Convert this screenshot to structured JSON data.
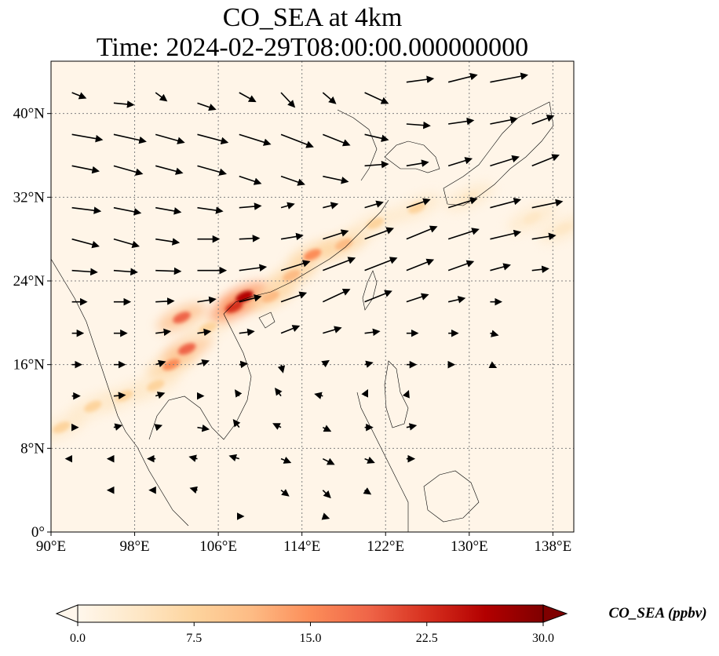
{
  "chart_data": {
    "type": "heatmap",
    "title_line1": "CO_SEA at 4km",
    "title_line2": "Time: 2024-02-29T08:00:00.000000000",
    "x_axis": {
      "range": [
        90,
        140
      ],
      "ticks": [
        90,
        98,
        106,
        114,
        122,
        130,
        138
      ],
      "tick_labels": [
        "90°E",
        "98°E",
        "106°E",
        "114°E",
        "122°E",
        "130°E",
        "138°E"
      ]
    },
    "y_axis": {
      "range": [
        0,
        45
      ],
      "ticks": [
        0,
        8,
        16,
        24,
        32,
        40
      ],
      "tick_labels": [
        "0°",
        "8°N",
        "16°N",
        "24°N",
        "32°N",
        "40°N"
      ]
    },
    "gridlines": "dotted",
    "colorbar": {
      "label": "CO_SEA (ppbv)",
      "colormap": "OrRd",
      "range": [
        0.0,
        30.0
      ],
      "ticks": [
        0.0,
        7.5,
        15.0,
        22.5,
        30.0
      ],
      "tick_labels": [
        "0.0",
        "7.5",
        "15.0",
        "22.5",
        "30.0"
      ],
      "extend": "both",
      "placement": "bottom",
      "colors": [
        "#fff7ec",
        "#fee8c8",
        "#fdd49e",
        "#fdbb84",
        "#fc8d59",
        "#ef6548",
        "#d7301f",
        "#b30000",
        "#7f0000"
      ]
    },
    "plume_points": [
      {
        "lon": 91,
        "lat": 10,
        "value": 6
      },
      {
        "lon": 94,
        "lat": 12,
        "value": 7
      },
      {
        "lon": 97,
        "lat": 13,
        "value": 7
      },
      {
        "lon": 100,
        "lat": 14,
        "value": 8
      },
      {
        "lon": 101.5,
        "lat": 16,
        "value": 14
      },
      {
        "lon": 103,
        "lat": 17.5,
        "value": 17
      },
      {
        "lon": 102.5,
        "lat": 20.5,
        "value": 20
      },
      {
        "lon": 105,
        "lat": 19.5,
        "value": 9
      },
      {
        "lon": 107.5,
        "lat": 21.5,
        "value": 24
      },
      {
        "lon": 108.5,
        "lat": 22.5,
        "value": 27
      },
      {
        "lon": 111,
        "lat": 22.5,
        "value": 12
      },
      {
        "lon": 113,
        "lat": 24.5,
        "value": 11
      },
      {
        "lon": 115,
        "lat": 26.5,
        "value": 14
      },
      {
        "lon": 118,
        "lat": 27.5,
        "value": 12
      },
      {
        "lon": 121,
        "lat": 29.5,
        "value": 9
      },
      {
        "lon": 125,
        "lat": 31,
        "value": 7
      },
      {
        "lon": 130,
        "lat": 32,
        "value": 5
      },
      {
        "lon": 136,
        "lat": 30,
        "value": 5
      },
      {
        "lon": 139,
        "lat": 29,
        "value": 4
      }
    ],
    "wind_vectors": [
      {
        "lon": 92,
        "lat": 42,
        "u": 1.5,
        "v": -0.6
      },
      {
        "lon": 96,
        "lat": 41,
        "u": 2.2,
        "v": -0.2
      },
      {
        "lon": 100,
        "lat": 42,
        "u": 1.2,
        "v": -0.9
      },
      {
        "lon": 104,
        "lat": 41,
        "u": 2.0,
        "v": -0.7
      },
      {
        "lon": 108,
        "lat": 42,
        "u": 1.8,
        "v": -1.0
      },
      {
        "lon": 112,
        "lat": 42,
        "u": 1.5,
        "v": -1.6
      },
      {
        "lon": 116,
        "lat": 42,
        "u": 1.4,
        "v": -1.2
      },
      {
        "lon": 120,
        "lat": 42,
        "u": 2.6,
        "v": -1.2
      },
      {
        "lon": 124,
        "lat": 43,
        "u": 3.0,
        "v": 0.4
      },
      {
        "lon": 128,
        "lat": 43,
        "u": 3.2,
        "v": 0.8
      },
      {
        "lon": 132,
        "lat": 43,
        "u": 4.2,
        "v": 0.8
      },
      {
        "lon": 92,
        "lat": 38,
        "u": 3.4,
        "v": -0.6
      },
      {
        "lon": 96,
        "lat": 38,
        "u": 3.6,
        "v": -0.8
      },
      {
        "lon": 100,
        "lat": 38,
        "u": 3.2,
        "v": -0.9
      },
      {
        "lon": 104,
        "lat": 38,
        "u": 3.4,
        "v": -0.9
      },
      {
        "lon": 108,
        "lat": 38,
        "u": 3.5,
        "v": -1.1
      },
      {
        "lon": 112,
        "lat": 38,
        "u": 3.6,
        "v": -1.4
      },
      {
        "lon": 116,
        "lat": 38,
        "u": 3.0,
        "v": -1.2
      },
      {
        "lon": 120,
        "lat": 38,
        "u": 2.6,
        "v": -0.6
      },
      {
        "lon": 124,
        "lat": 39,
        "u": 2.6,
        "v": -0.2
      },
      {
        "lon": 128,
        "lat": 39,
        "u": 2.8,
        "v": 0.4
      },
      {
        "lon": 132,
        "lat": 39,
        "u": 3.0,
        "v": 0.6
      },
      {
        "lon": 136,
        "lat": 39,
        "u": 2.4,
        "v": 0.9
      },
      {
        "lon": 92,
        "lat": 35,
        "u": 3.0,
        "v": -0.6
      },
      {
        "lon": 96,
        "lat": 35,
        "u": 3.2,
        "v": -0.9
      },
      {
        "lon": 100,
        "lat": 35,
        "u": 3.0,
        "v": -0.8
      },
      {
        "lon": 104,
        "lat": 35,
        "u": 3.2,
        "v": -0.9
      },
      {
        "lon": 108,
        "lat": 34,
        "u": 2.4,
        "v": -0.8
      },
      {
        "lon": 112,
        "lat": 34,
        "u": 2.6,
        "v": -0.9
      },
      {
        "lon": 116,
        "lat": 34,
        "u": 2.8,
        "v": -0.6
      },
      {
        "lon": 120,
        "lat": 35,
        "u": 2.6,
        "v": 0.2
      },
      {
        "lon": 124,
        "lat": 35,
        "u": 2.4,
        "v": 0.4
      },
      {
        "lon": 128,
        "lat": 35,
        "u": 2.6,
        "v": 0.8
      },
      {
        "lon": 132,
        "lat": 35,
        "u": 3.2,
        "v": 1.0
      },
      {
        "lon": 136,
        "lat": 35,
        "u": 3.0,
        "v": 1.2
      },
      {
        "lon": 92,
        "lat": 31,
        "u": 3.2,
        "v": -0.4
      },
      {
        "lon": 96,
        "lat": 31,
        "u": 3.0,
        "v": -0.6
      },
      {
        "lon": 100,
        "lat": 31,
        "u": 2.8,
        "v": -0.5
      },
      {
        "lon": 104,
        "lat": 31,
        "u": 2.8,
        "v": -0.4
      },
      {
        "lon": 108,
        "lat": 31,
        "u": 2.4,
        "v": 0.2
      },
      {
        "lon": 112,
        "lat": 31,
        "u": 1.4,
        "v": 0.4
      },
      {
        "lon": 116,
        "lat": 31,
        "u": 1.6,
        "v": 0.4
      },
      {
        "lon": 120,
        "lat": 31,
        "u": 2.0,
        "v": 0.6
      },
      {
        "lon": 124,
        "lat": 31,
        "u": 2.6,
        "v": 0.9
      },
      {
        "lon": 128,
        "lat": 31,
        "u": 3.2,
        "v": 1.0
      },
      {
        "lon": 132,
        "lat": 31,
        "u": 3.4,
        "v": 0.9
      },
      {
        "lon": 136,
        "lat": 31,
        "u": 3.4,
        "v": 0.7
      },
      {
        "lon": 92,
        "lat": 28,
        "u": 3.0,
        "v": -0.8
      },
      {
        "lon": 96,
        "lat": 28,
        "u": 2.8,
        "v": -0.8
      },
      {
        "lon": 100,
        "lat": 28,
        "u": 2.6,
        "v": -0.4
      },
      {
        "lon": 104,
        "lat": 28,
        "u": 2.4,
        "v": 0.0
      },
      {
        "lon": 108,
        "lat": 28,
        "u": 2.2,
        "v": 0.1
      },
      {
        "lon": 112,
        "lat": 28,
        "u": 2.4,
        "v": 0.4
      },
      {
        "lon": 116,
        "lat": 28,
        "u": 2.8,
        "v": 0.9
      },
      {
        "lon": 120,
        "lat": 28,
        "u": 3.2,
        "v": 1.2
      },
      {
        "lon": 124,
        "lat": 28,
        "u": 3.4,
        "v": 1.4
      },
      {
        "lon": 128,
        "lat": 28,
        "u": 3.4,
        "v": 1.1
      },
      {
        "lon": 132,
        "lat": 28,
        "u": 3.4,
        "v": 0.8
      },
      {
        "lon": 136,
        "lat": 28,
        "u": 2.6,
        "v": 0.4
      },
      {
        "lon": 92,
        "lat": 25,
        "u": 2.8,
        "v": -0.2
      },
      {
        "lon": 96,
        "lat": 25,
        "u": 2.6,
        "v": -0.2
      },
      {
        "lon": 100,
        "lat": 25,
        "u": 2.8,
        "v": -0.1
      },
      {
        "lon": 104,
        "lat": 25,
        "u": 3.2,
        "v": 0.0
      },
      {
        "lon": 108,
        "lat": 25,
        "u": 3.0,
        "v": 0.4
      },
      {
        "lon": 112,
        "lat": 25,
        "u": 3.2,
        "v": 1.0
      },
      {
        "lon": 116,
        "lat": 25,
        "u": 3.6,
        "v": 1.4
      },
      {
        "lon": 120,
        "lat": 25,
        "u": 3.6,
        "v": 1.4
      },
      {
        "lon": 124,
        "lat": 25,
        "u": 3.0,
        "v": 1.2
      },
      {
        "lon": 128,
        "lat": 25,
        "u": 2.8,
        "v": 1.0
      },
      {
        "lon": 132,
        "lat": 25,
        "u": 2.2,
        "v": 0.6
      },
      {
        "lon": 136,
        "lat": 25,
        "u": 1.8,
        "v": 0.2
      },
      {
        "lon": 92,
        "lat": 22,
        "u": 1.6,
        "v": 0.0
      },
      {
        "lon": 96,
        "lat": 22,
        "u": 1.8,
        "v": 0.0
      },
      {
        "lon": 100,
        "lat": 22,
        "u": 2.0,
        "v": 0.1
      },
      {
        "lon": 104,
        "lat": 22,
        "u": 2.0,
        "v": 0.3
      },
      {
        "lon": 108,
        "lat": 22,
        "u": 2.4,
        "v": 0.6
      },
      {
        "lon": 112,
        "lat": 22,
        "u": 2.8,
        "v": 1.0
      },
      {
        "lon": 116,
        "lat": 22,
        "u": 3.0,
        "v": 1.4
      },
      {
        "lon": 120,
        "lat": 22,
        "u": 3.0,
        "v": 1.2
      },
      {
        "lon": 124,
        "lat": 22,
        "u": 2.4,
        "v": 0.8
      },
      {
        "lon": 128,
        "lat": 22,
        "u": 1.8,
        "v": 0.4
      },
      {
        "lon": 132,
        "lat": 22,
        "u": 1.2,
        "v": 0.0
      },
      {
        "lon": 92,
        "lat": 19,
        "u": 1.2,
        "v": 0.0
      },
      {
        "lon": 96,
        "lat": 19,
        "u": 1.4,
        "v": 0.0
      },
      {
        "lon": 100,
        "lat": 19,
        "u": 1.6,
        "v": 0.2
      },
      {
        "lon": 104,
        "lat": 19,
        "u": 1.4,
        "v": 0.2
      },
      {
        "lon": 108,
        "lat": 19,
        "u": 1.6,
        "v": 0.2
      },
      {
        "lon": 112,
        "lat": 19,
        "u": 2.0,
        "v": 0.8
      },
      {
        "lon": 116,
        "lat": 19,
        "u": 2.0,
        "v": 0.6
      },
      {
        "lon": 120,
        "lat": 19,
        "u": 1.6,
        "v": 0.2
      },
      {
        "lon": 124,
        "lat": 19,
        "u": 1.2,
        "v": 0.0
      },
      {
        "lon": 128,
        "lat": 19,
        "u": 1.0,
        "v": 0.0
      },
      {
        "lon": 132,
        "lat": 19,
        "u": 0.8,
        "v": -0.2
      },
      {
        "lon": 92,
        "lat": 16,
        "u": 1.0,
        "v": 0.0
      },
      {
        "lon": 96,
        "lat": 16,
        "u": 1.2,
        "v": 0.0
      },
      {
        "lon": 100,
        "lat": 16,
        "u": 1.0,
        "v": 0.3
      },
      {
        "lon": 104,
        "lat": 16,
        "u": 1.2,
        "v": 0.4
      },
      {
        "lon": 108,
        "lat": 16,
        "u": 0.8,
        "v": 0.1
      },
      {
        "lon": 112,
        "lat": 16,
        "u": 0.2,
        "v": -0.8
      },
      {
        "lon": 116,
        "lat": 16,
        "u": 0.6,
        "v": 0.4
      },
      {
        "lon": 120,
        "lat": 16,
        "u": 0.8,
        "v": 0.2
      },
      {
        "lon": 124,
        "lat": 16,
        "u": 1.0,
        "v": 0.0
      },
      {
        "lon": 128,
        "lat": 16,
        "u": 0.6,
        "v": 0.0
      },
      {
        "lon": 132,
        "lat": 16,
        "u": 0.6,
        "v": -0.3
      },
      {
        "lon": 92,
        "lat": 13,
        "u": 0.8,
        "v": 0.0
      },
      {
        "lon": 96,
        "lat": 13,
        "u": 1.2,
        "v": 0.1
      },
      {
        "lon": 100,
        "lat": 13,
        "u": 0.9,
        "v": 0.3
      },
      {
        "lon": 104,
        "lat": 13,
        "u": 0.6,
        "v": 0.0
      },
      {
        "lon": 108,
        "lat": 13,
        "u": -0.4,
        "v": 0.6
      },
      {
        "lon": 112,
        "lat": 13,
        "u": -0.6,
        "v": 0.8
      },
      {
        "lon": 116,
        "lat": 13,
        "u": -0.8,
        "v": 0.2
      },
      {
        "lon": 120,
        "lat": 13,
        "u": 0.3,
        "v": 0.6
      },
      {
        "lon": 124,
        "lat": 13,
        "u": 0.2,
        "v": 0.5
      },
      {
        "lon": 92,
        "lat": 10,
        "u": 0.6,
        "v": 0.0
      },
      {
        "lon": 96,
        "lat": 10,
        "u": 0.8,
        "v": 0.2
      },
      {
        "lon": 100,
        "lat": 10,
        "u": 0.6,
        "v": 0.2
      },
      {
        "lon": 104,
        "lat": 10,
        "u": 1.2,
        "v": -0.2
      },
      {
        "lon": 108,
        "lat": 10,
        "u": -0.6,
        "v": 0.8
      },
      {
        "lon": 112,
        "lat": 10,
        "u": -0.8,
        "v": 0.4
      },
      {
        "lon": 116,
        "lat": 10,
        "u": 0.8,
        "v": -0.4
      },
      {
        "lon": 120,
        "lat": 10,
        "u": 0.8,
        "v": 0.0
      },
      {
        "lon": 124,
        "lat": 10,
        "u": 1.0,
        "v": 0.2
      },
      {
        "lon": 92,
        "lat": 7,
        "u": -0.6,
        "v": 0.0
      },
      {
        "lon": 96,
        "lat": 7,
        "u": -0.6,
        "v": 0.0
      },
      {
        "lon": 100,
        "lat": 7,
        "u": -0.8,
        "v": 0.0
      },
      {
        "lon": 104,
        "lat": 7,
        "u": -0.8,
        "v": 0.2
      },
      {
        "lon": 108,
        "lat": 7,
        "u": -1.0,
        "v": 0.3
      },
      {
        "lon": 112,
        "lat": 7,
        "u": 1.0,
        "v": -0.4
      },
      {
        "lon": 116,
        "lat": 7,
        "u": 1.2,
        "v": -0.6
      },
      {
        "lon": 120,
        "lat": 7,
        "u": 1.0,
        "v": -0.4
      },
      {
        "lon": 124,
        "lat": 7,
        "u": 0.8,
        "v": 0.0
      },
      {
        "lon": 96,
        "lat": 4,
        "u": -0.6,
        "v": 0.0
      },
      {
        "lon": 100,
        "lat": 4,
        "u": -0.6,
        "v": 0.0
      },
      {
        "lon": 104,
        "lat": 4,
        "u": -0.7,
        "v": 0.2
      },
      {
        "lon": 112,
        "lat": 4,
        "u": 0.8,
        "v": -0.6
      },
      {
        "lon": 116,
        "lat": 4,
        "u": 0.8,
        "v": -0.8
      },
      {
        "lon": 120,
        "lat": 4,
        "u": 0.6,
        "v": -0.4
      },
      {
        "lon": 108,
        "lat": 1.5,
        "u": 0.4,
        "v": 0.0
      },
      {
        "lon": 116,
        "lat": 1.5,
        "u": 0.6,
        "v": -0.2
      }
    ]
  }
}
